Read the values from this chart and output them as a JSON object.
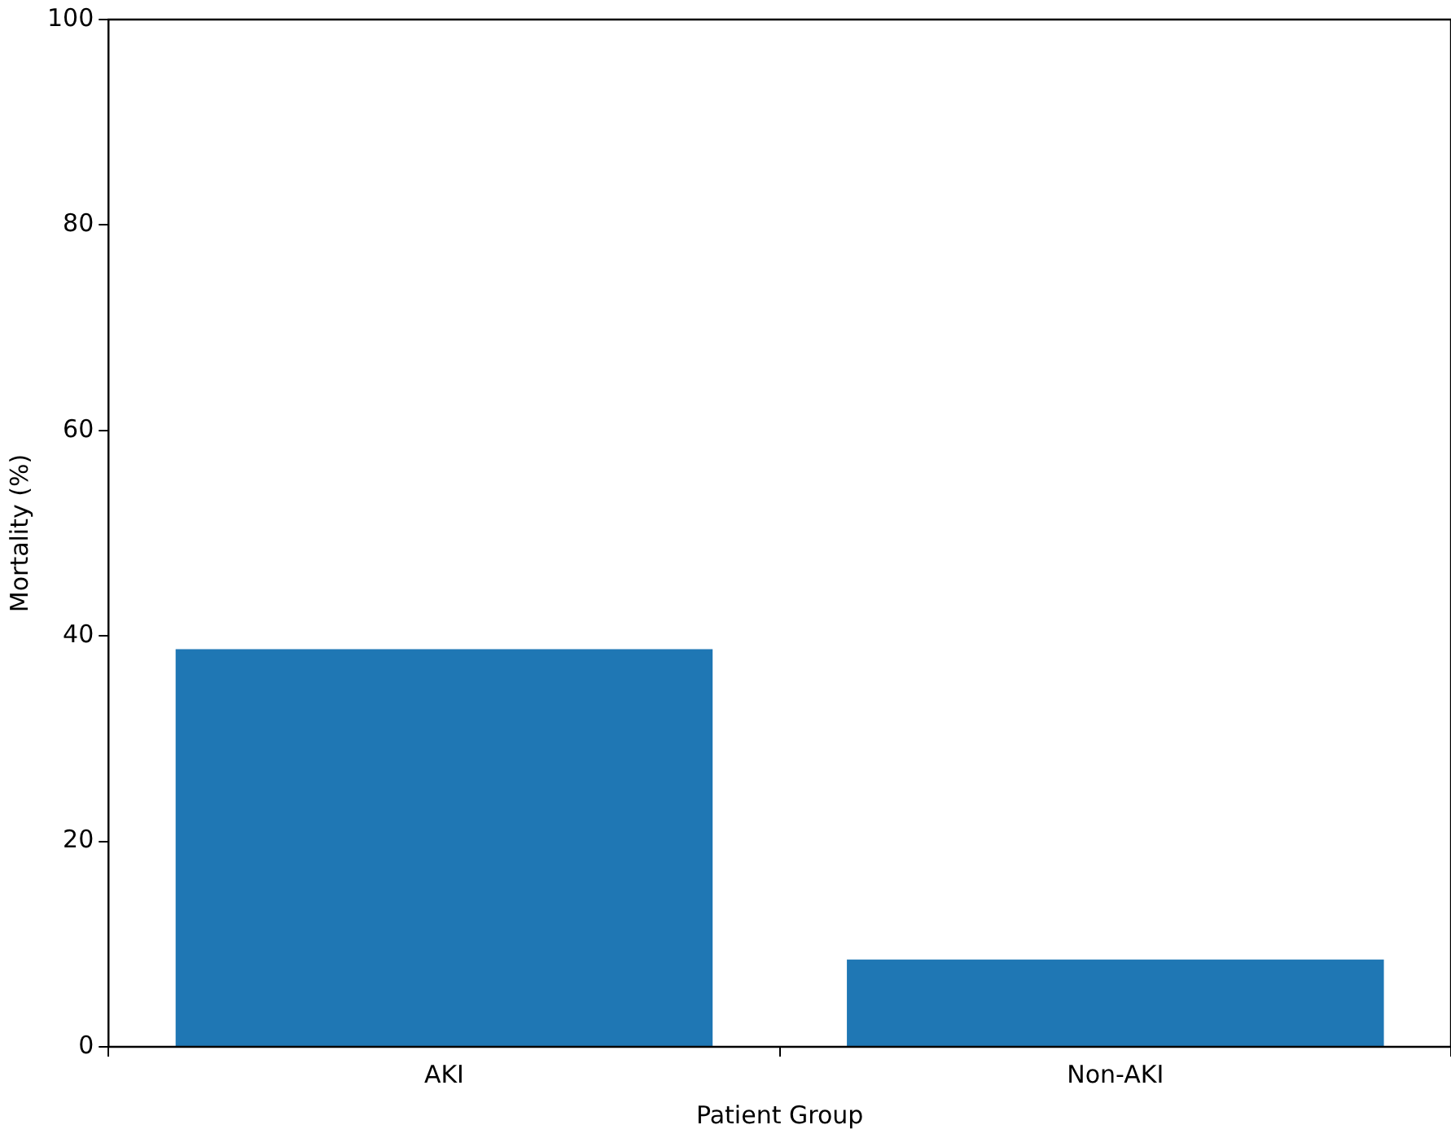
{
  "chart_data": {
    "type": "bar",
    "categories": [
      "AKI",
      "Non-AKI"
    ],
    "values": [
      38.7,
      8.5
    ],
    "color": "#1f77b4",
    "xlabel": "Patient Group",
    "ylabel": "Mortality (%)",
    "ylim": [
      0,
      100
    ],
    "yticks": [
      0,
      20,
      40,
      60,
      80,
      100
    ],
    "grid": false,
    "legend": false
  }
}
